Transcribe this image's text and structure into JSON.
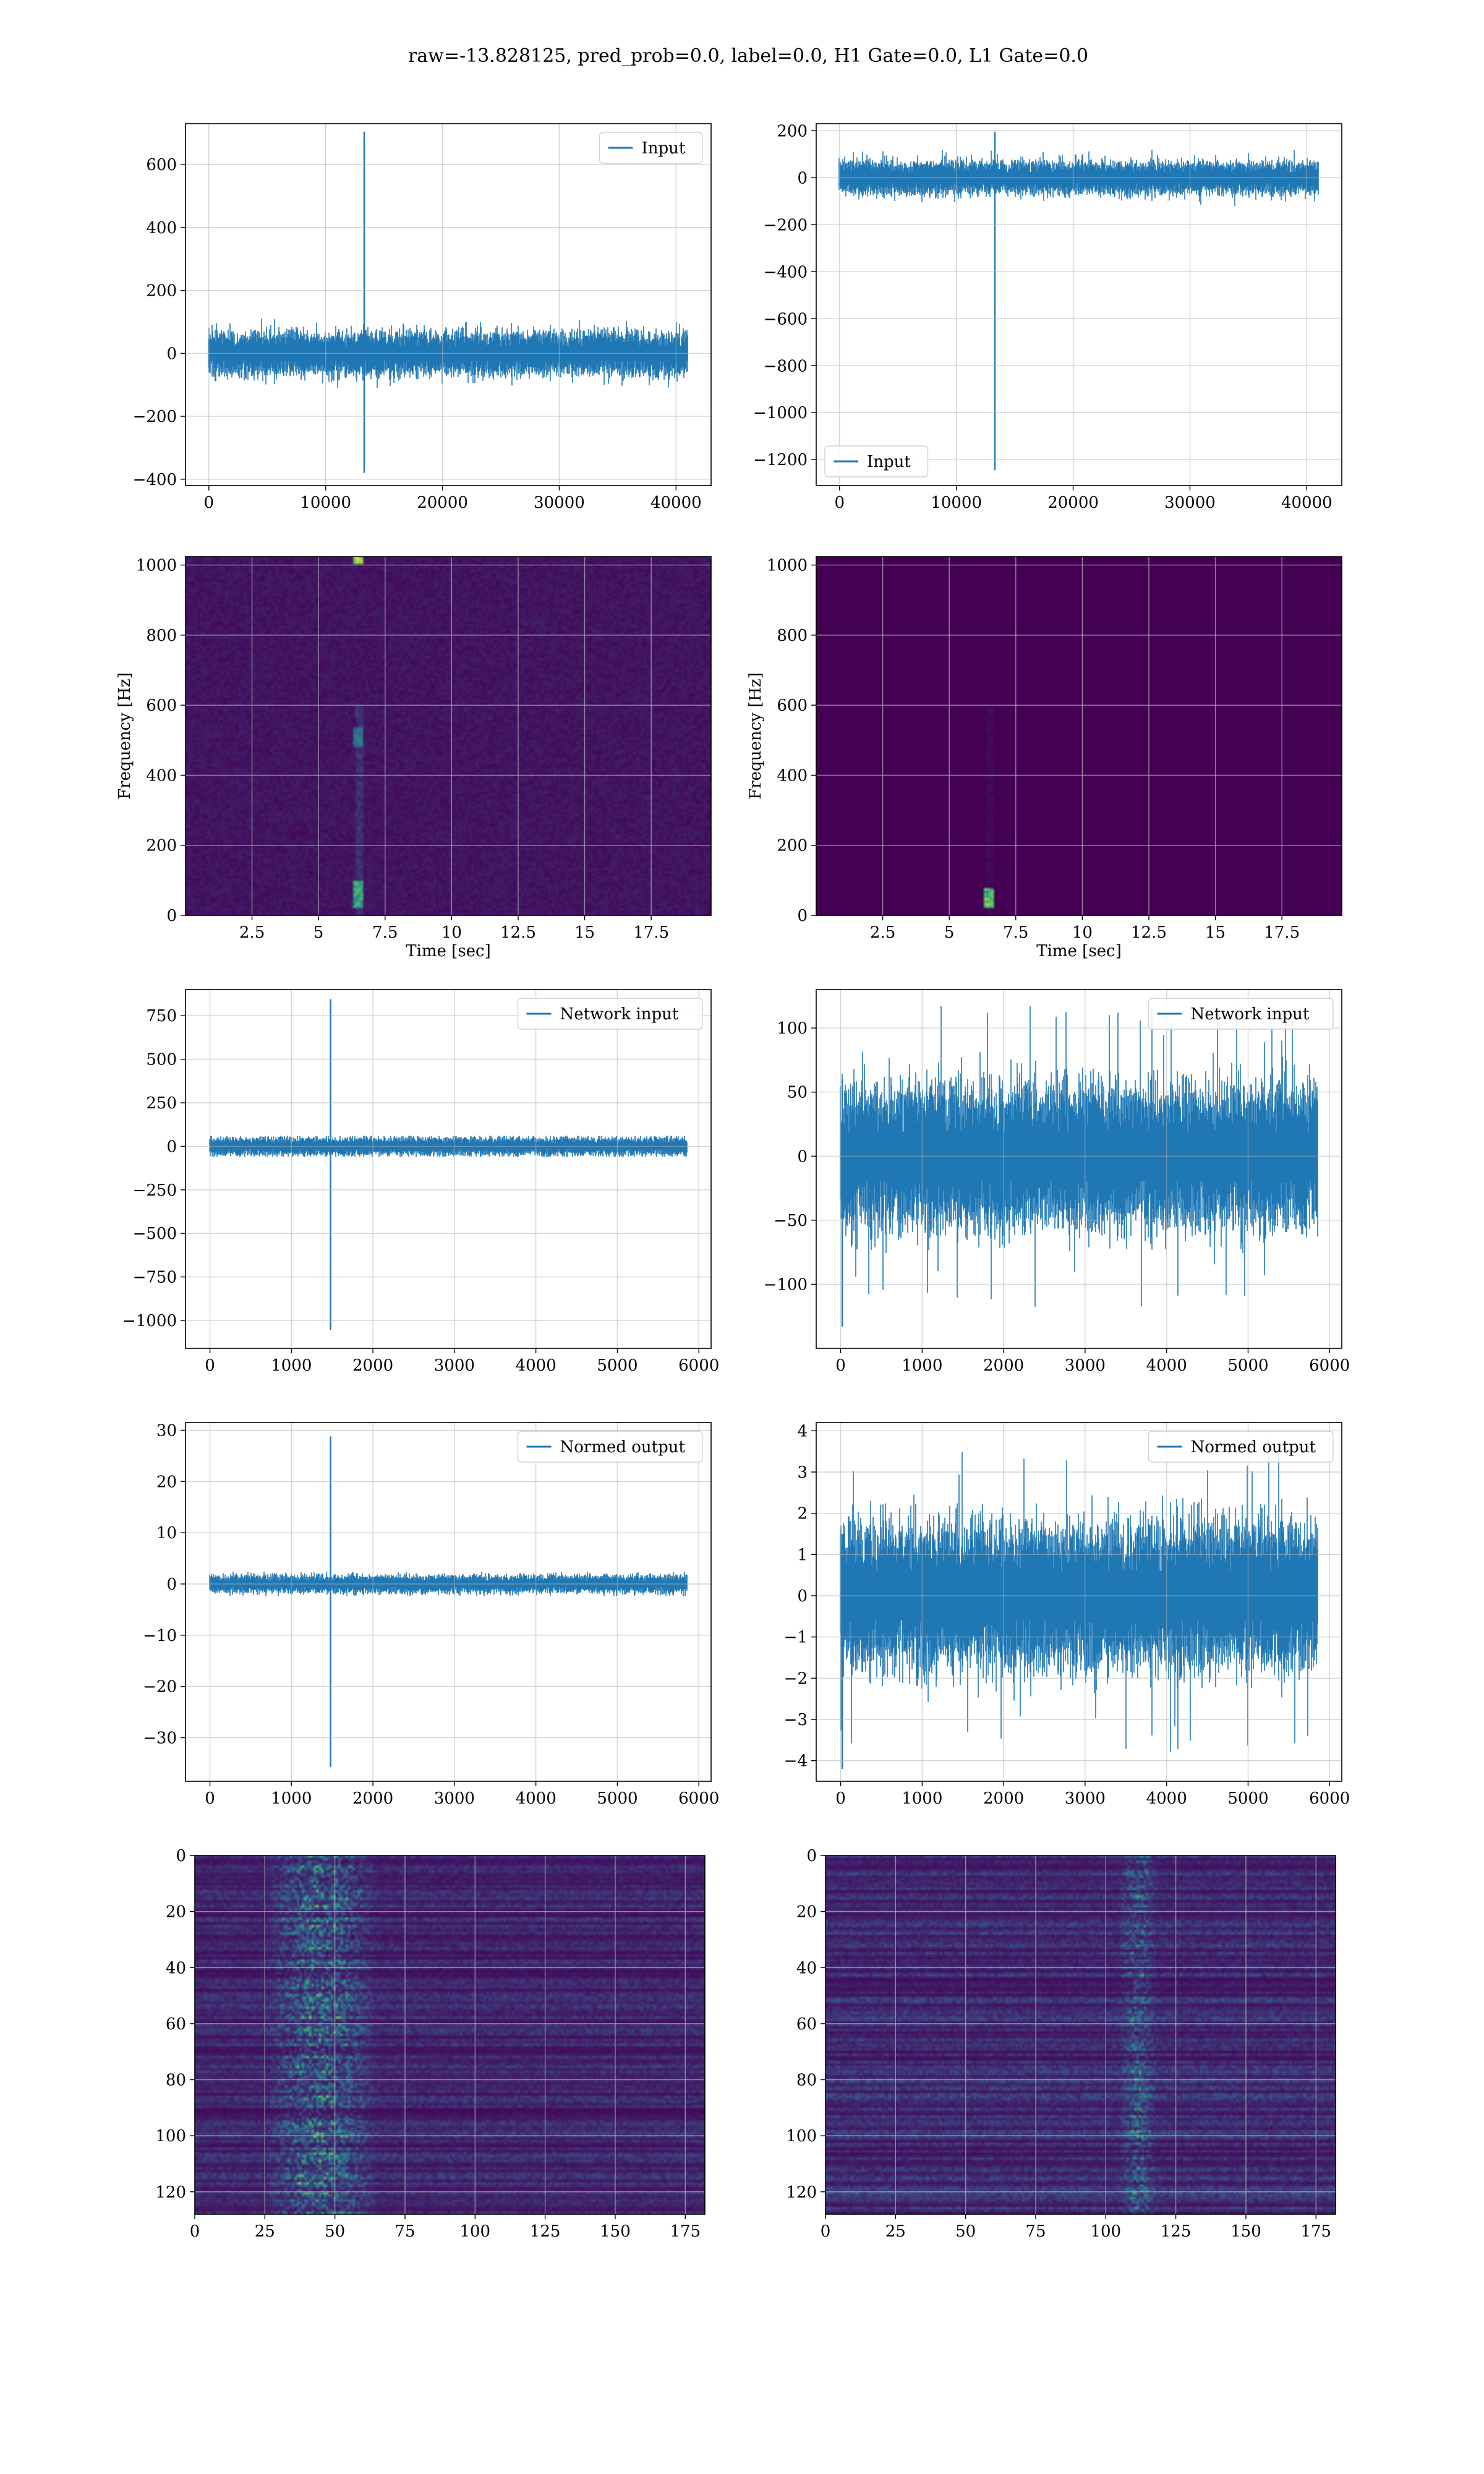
{
  "figure": {
    "title": "raw=-13.828125, pred_prob=0.0, label=0.0, H1 Gate=0.0, L1 Gate=0.0",
    "series_color": "#1f77b4",
    "grid_color": "#b0b0b0"
  },
  "chart_data": [
    {
      "id": "ts-input-h1",
      "type": "line",
      "legend": [
        "Input"
      ],
      "legend_loc": "upper right",
      "xlim": [
        -2000,
        43000
      ],
      "ylim": [
        -420,
        730
      ],
      "xticks": [
        0,
        10000,
        20000,
        30000,
        40000
      ],
      "yticks": [
        -400,
        -200,
        0,
        200,
        400,
        600
      ],
      "grid": true,
      "signal": {
        "length": 40960,
        "noise_amplitude": 40,
        "clip": 110,
        "spikes": [
          {
            "x": 13300,
            "max": 705,
            "min": -380
          }
        ]
      }
    },
    {
      "id": "ts-input-l1",
      "type": "line",
      "legend": [
        "Input"
      ],
      "legend_loc": "lower left",
      "xlim": [
        -2000,
        43000
      ],
      "ylim": [
        -1310,
        230
      ],
      "xticks": [
        0,
        10000,
        20000,
        30000,
        40000
      ],
      "yticks": [
        -1200,
        -1000,
        -800,
        -600,
        -400,
        -200,
        0,
        200
      ],
      "grid": true,
      "signal": {
        "length": 40960,
        "noise_amplitude": 40,
        "clip": 120,
        "spikes": [
          {
            "x": 13300,
            "max": 195,
            "min": -1245
          }
        ]
      }
    },
    {
      "id": "spec-h1",
      "type": "heatmap",
      "colormap": "viridis",
      "xlabel": "Time [sec]",
      "ylabel": "Frequency [Hz]",
      "xlim": [
        0,
        19.75
      ],
      "ylim": [
        0,
        1024
      ],
      "xticks": [
        2.5,
        5.0,
        7.5,
        10.0,
        12.5,
        15.0,
        17.5
      ],
      "yticks": [
        0,
        200,
        400,
        600,
        800,
        1000
      ],
      "grid": true,
      "background_level": 0.06,
      "features": [
        {
          "t": 6.5,
          "f_low": 20,
          "f_high": 100,
          "intensity": 0.55
        },
        {
          "t": 6.5,
          "f_low": 480,
          "f_high": 540,
          "intensity": 0.3
        },
        {
          "t": 6.5,
          "f_low": 1005,
          "f_high": 1024,
          "intensity": 0.8
        }
      ]
    },
    {
      "id": "spec-l1",
      "type": "heatmap",
      "colormap": "viridis",
      "xlabel": "Time [sec]",
      "ylabel": "Frequency [Hz]",
      "xlim": [
        0,
        19.75
      ],
      "ylim": [
        0,
        1024
      ],
      "xticks": [
        2.5,
        5.0,
        7.5,
        10.0,
        12.5,
        15.0,
        17.5
      ],
      "yticks": [
        0,
        200,
        400,
        600,
        800,
        1000
      ],
      "grid": true,
      "background_level": 0.0,
      "features": [
        {
          "t": 6.5,
          "f_low": 20,
          "f_high": 80,
          "intensity": 0.75
        }
      ]
    },
    {
      "id": "ts-network-h1",
      "type": "line",
      "legend": [
        "Network input"
      ],
      "legend_loc": "upper right",
      "xlim": [
        -300,
        6150
      ],
      "ylim": [
        -1160,
        900
      ],
      "xticks": [
        0,
        1000,
        2000,
        3000,
        4000,
        5000,
        6000
      ],
      "yticks": [
        -1000,
        -750,
        -500,
        -250,
        0,
        250,
        500,
        750
      ],
      "grid": true,
      "signal": {
        "length": 5850,
        "noise_amplitude": 30,
        "clip": 60,
        "spikes": [
          {
            "x": 1480,
            "max": 845,
            "min": -1055
          }
        ]
      }
    },
    {
      "id": "ts-network-l1",
      "type": "line",
      "legend": [
        "Network input"
      ],
      "legend_loc": "upper right",
      "xlim": [
        -300,
        6150
      ],
      "ylim": [
        -150,
        130
      ],
      "xticks": [
        0,
        1000,
        2000,
        3000,
        4000,
        5000,
        6000
      ],
      "yticks": [
        -100,
        -50,
        0,
        50,
        100
      ],
      "grid": true,
      "signal": {
        "length": 5850,
        "noise_amplitude": 32,
        "clip": 118,
        "spikes": [
          {
            "x": 20,
            "max": 60,
            "min": -133
          }
        ]
      }
    },
    {
      "id": "ts-normed-h1",
      "type": "line",
      "legend": [
        "Normed output"
      ],
      "legend_loc": "upper right",
      "xlim": [
        -300,
        6150
      ],
      "ylim": [
        -38.5,
        31.5
      ],
      "xticks": [
        0,
        1000,
        2000,
        3000,
        4000,
        5000,
        6000
      ],
      "yticks": [
        -30,
        -20,
        -10,
        0,
        10,
        20,
        30
      ],
      "grid": true,
      "signal": {
        "length": 5850,
        "noise_amplitude": 1.0,
        "clip": 2.4,
        "spikes": [
          {
            "x": 1480,
            "max": 28.8,
            "min": -35.7
          }
        ]
      }
    },
    {
      "id": "ts-normed-l1",
      "type": "line",
      "legend": [
        "Normed output"
      ],
      "legend_loc": "upper right",
      "xlim": [
        -300,
        6150
      ],
      "ylim": [
        -4.5,
        4.2
      ],
      "xticks": [
        0,
        1000,
        2000,
        3000,
        4000,
        5000,
        6000
      ],
      "yticks": [
        -4,
        -3,
        -2,
        -1,
        0,
        1,
        2,
        3,
        4
      ],
      "grid": true,
      "signal": {
        "length": 5850,
        "noise_amplitude": 1.0,
        "clip": 3.85,
        "spikes": [
          {
            "x": 20,
            "max": 1.5,
            "min": -4.2
          }
        ]
      }
    },
    {
      "id": "feat-h1",
      "type": "heatmap",
      "colormap": "viridis",
      "xlim": [
        0,
        182
      ],
      "ylim": [
        128,
        0
      ],
      "xticks": [
        0,
        25,
        50,
        75,
        100,
        125,
        150,
        175
      ],
      "yticks": [
        0,
        20,
        40,
        60,
        80,
        100,
        120
      ],
      "grid": true,
      "background_level": 0.1,
      "features": [
        {
          "x_low": 25,
          "x_high": 65,
          "intensity": 0.5
        }
      ]
    },
    {
      "id": "feat-l1",
      "type": "heatmap",
      "colormap": "viridis",
      "xlim": [
        0,
        182
      ],
      "ylim": [
        128,
        0
      ],
      "xticks": [
        0,
        25,
        50,
        75,
        100,
        125,
        150,
        175
      ],
      "yticks": [
        0,
        20,
        40,
        60,
        80,
        100,
        120
      ],
      "grid": true,
      "background_level": 0.12,
      "features": [
        {
          "x_low": 105,
          "x_high": 118,
          "intensity": 0.4
        }
      ]
    }
  ]
}
